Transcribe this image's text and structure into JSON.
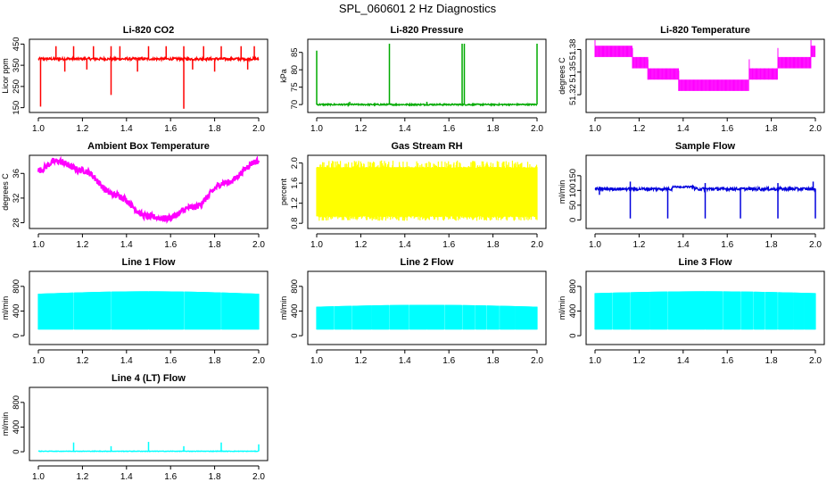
{
  "page": {
    "title": "SPL_060601  2 Hz Diagnostics"
  },
  "chart_data": [
    {
      "type": "line",
      "title": "Li-820 CO2",
      "ylabel": "Licor ppm",
      "color": "#ff0000",
      "xlim": [
        1.0,
        2.0
      ],
      "ylim": [
        140,
        460
      ],
      "xticks": [
        1.0,
        1.2,
        1.4,
        1.6,
        1.8,
        2.0
      ],
      "xtick_labels": [
        "1.0",
        "1.2",
        "1.4",
        "1.6",
        "1.8",
        "2.0"
      ],
      "yticks": [
        150,
        250,
        350,
        450
      ],
      "ytick_labels": [
        "150",
        "250",
        "350",
        "450"
      ],
      "pattern": "spiky",
      "base": 380,
      "noise": 6,
      "spikes": [
        [
          1.08,
          440
        ],
        [
          1.16,
          440
        ],
        [
          1.25,
          440
        ],
        [
          1.33,
          440
        ],
        [
          1.37,
          440
        ],
        [
          1.5,
          440
        ],
        [
          1.58,
          440
        ],
        [
          1.66,
          440
        ],
        [
          1.75,
          440
        ],
        [
          1.83,
          440
        ],
        [
          1.92,
          440
        ],
        [
          1.98,
          440
        ],
        [
          1.01,
          155
        ],
        [
          1.33,
          210
        ],
        [
          1.66,
          145
        ],
        [
          1.12,
          320
        ],
        [
          1.22,
          330
        ],
        [
          1.45,
          320
        ],
        [
          1.7,
          330
        ],
        [
          1.8,
          320
        ],
        [
          1.95,
          330
        ]
      ]
    },
    {
      "type": "line",
      "title": "Li-820 Pressure",
      "ylabel": "kPa",
      "color": "#00aa00",
      "xlim": [
        1.0,
        2.0
      ],
      "ylim": [
        68.5,
        88
      ],
      "xticks": [
        1.0,
        1.2,
        1.4,
        1.6,
        1.8,
        2.0
      ],
      "xtick_labels": [
        "1.0",
        "1.2",
        "1.4",
        "1.6",
        "1.8",
        "2.0"
      ],
      "yticks": [
        70,
        75,
        80,
        85
      ],
      "ytick_labels": [
        "70",
        "75",
        "80",
        "85"
      ],
      "pattern": "spiky",
      "base": 70.0,
      "noise": 0.2,
      "spikes": [
        [
          1.0,
          85.5
        ],
        [
          1.33,
          87.5
        ],
        [
          1.66,
          87.5
        ],
        [
          1.67,
          87.5
        ],
        [
          2.0,
          87.5
        ],
        [
          1.5,
          70.8
        ],
        [
          1.15,
          70.8
        ]
      ]
    },
    {
      "type": "line",
      "title": "Li-820 Temperature",
      "ylabel": "degrees C",
      "color": "#ff00ff",
      "xlim": [
        1.0,
        2.0
      ],
      "ylim": [
        51.3,
        51.39
      ],
      "xticks": [
        1.0,
        1.2,
        1.4,
        1.6,
        1.8,
        2.0
      ],
      "xtick_labels": [
        "1.0",
        "1.2",
        "1.4",
        "1.6",
        "1.8",
        "2.0"
      ],
      "yticks": [
        51.32,
        51.35,
        51.38
      ],
      "ytick_labels": [
        "51.32",
        "51.35",
        "51.38"
      ],
      "pattern": "steps",
      "steps": [
        [
          1.0,
          1.17,
          51.37,
          51.385
        ],
        [
          1.17,
          1.24,
          51.355,
          51.37
        ],
        [
          1.24,
          1.38,
          51.34,
          51.355
        ],
        [
          1.38,
          1.7,
          51.325,
          51.34
        ],
        [
          1.7,
          1.83,
          51.34,
          51.355
        ],
        [
          1.83,
          1.98,
          51.355,
          51.37
        ],
        [
          1.98,
          2.0,
          51.37,
          51.385
        ]
      ]
    },
    {
      "type": "line",
      "title": "Ambient Box Temperature",
      "ylabel": "degrees C",
      "color": "#ff00ff",
      "xlim": [
        1.0,
        2.0
      ],
      "ylim": [
        27.5,
        38.5
      ],
      "xticks": [
        1.0,
        1.2,
        1.4,
        1.6,
        1.8,
        2.0
      ],
      "xtick_labels": [
        "1.0",
        "1.2",
        "1.4",
        "1.6",
        "1.8",
        "2.0"
      ],
      "yticks": [
        28,
        32,
        36
      ],
      "ytick_labels": [
        "28",
        "32",
        "36"
      ],
      "pattern": "curve",
      "noise": 0.5,
      "curve": [
        [
          1.0,
          36.5
        ],
        [
          1.08,
          38.0
        ],
        [
          1.2,
          36.5
        ],
        [
          1.35,
          32.5
        ],
        [
          1.5,
          29.0
        ],
        [
          1.58,
          28.7
        ],
        [
          1.7,
          30.5
        ],
        [
          1.85,
          34.5
        ],
        [
          2.0,
          38.0
        ]
      ]
    },
    {
      "type": "line",
      "title": "Gas Stream RH",
      "ylabel": "percent",
      "color": "#ffff00",
      "xlim": [
        1.0,
        2.0
      ],
      "ylim": [
        0.75,
        2.1
      ],
      "xticks": [
        1.0,
        1.2,
        1.4,
        1.6,
        1.8,
        2.0
      ],
      "xtick_labels": [
        "1.0",
        "1.2",
        "1.4",
        "1.6",
        "1.8",
        "2.0"
      ],
      "yticks": [
        0.8,
        1.2,
        1.6,
        2.0
      ],
      "ytick_labels": [
        "0.8",
        "1.2",
        "1.6",
        "2.0"
      ],
      "pattern": "band",
      "low": 0.95,
      "high": 1.9,
      "ext_low": 0.85,
      "ext_high": 2.05
    },
    {
      "type": "line",
      "title": "Sample Flow",
      "ylabel": "ml/min",
      "color": "#0000dd",
      "xlim": [
        1.0,
        2.0
      ],
      "ylim": [
        -20,
        210
      ],
      "xticks": [
        1.0,
        1.2,
        1.4,
        1.6,
        1.8,
        2.0
      ],
      "xtick_labels": [
        "1.0",
        "1.2",
        "1.4",
        "1.6",
        "1.8",
        "2.0"
      ],
      "yticks": [
        0,
        50,
        100,
        150
      ],
      "ytick_labels": [
        "0",
        "50",
        "100",
        "150"
      ],
      "pattern": "spiky",
      "base": 105,
      "noise": 5,
      "bump": [
        1.35,
        1.45,
        112
      ],
      "spikes": [
        [
          1.16,
          5
        ],
        [
          1.33,
          5
        ],
        [
          1.5,
          5
        ],
        [
          1.66,
          5
        ],
        [
          1.83,
          5
        ],
        [
          2.0,
          5
        ],
        [
          1.16,
          130
        ],
        [
          1.5,
          125
        ],
        [
          1.83,
          125
        ],
        [
          1.99,
          130
        ],
        [
          1.02,
          85
        ]
      ]
    },
    {
      "type": "line",
      "title": "Line 1 Flow",
      "ylabel": "ml/min",
      "color": "#00ffff",
      "xlim": [
        1.0,
        2.0
      ],
      "ylim": [
        -100,
        1000
      ],
      "xticks": [
        1.0,
        1.2,
        1.4,
        1.6,
        1.8,
        2.0
      ],
      "xtick_labels": [
        "1.0",
        "1.2",
        "1.4",
        "1.6",
        "1.8",
        "2.0"
      ],
      "yticks": [
        0,
        400,
        800
      ],
      "ytick_labels": [
        "0",
        "400",
        "800"
      ],
      "pattern": "band",
      "low": 100,
      "high": 680,
      "hump": 40,
      "gaps": [
        1.16,
        1.33,
        1.5,
        1.66,
        1.83
      ]
    },
    {
      "type": "line",
      "title": "Line 2 Flow",
      "ylabel": "ml/min",
      "color": "#00ffff",
      "xlim": [
        1.0,
        2.0
      ],
      "ylim": [
        -100,
        1000
      ],
      "xticks": [
        1.0,
        1.2,
        1.4,
        1.6,
        1.8,
        2.0
      ],
      "xtick_labels": [
        "1.0",
        "1.2",
        "1.4",
        "1.6",
        "1.8",
        "2.0"
      ],
      "yticks": [
        0,
        400,
        800
      ],
      "ytick_labels": [
        "0",
        "400",
        "800"
      ],
      "pattern": "band",
      "low": 100,
      "high": 470,
      "hump": 30,
      "gaps": [
        1.08,
        1.16,
        1.25,
        1.33,
        1.42,
        1.5,
        1.58,
        1.66,
        1.72,
        1.77,
        1.83,
        1.9
      ]
    },
    {
      "type": "line",
      "title": "Line 3 Flow",
      "ylabel": "ml/min",
      "color": "#00ffff",
      "xlim": [
        1.0,
        2.0
      ],
      "ylim": [
        -100,
        1000
      ],
      "xticks": [
        1.0,
        1.2,
        1.4,
        1.6,
        1.8,
        2.0
      ],
      "xtick_labels": [
        "1.0",
        "1.2",
        "1.4",
        "1.6",
        "1.8",
        "2.0"
      ],
      "yticks": [
        0,
        400,
        800
      ],
      "ytick_labels": [
        "0",
        "400",
        "800"
      ],
      "pattern": "band",
      "low": 100,
      "high": 690,
      "hump": 30,
      "gaps": [
        1.08,
        1.16,
        1.25,
        1.33,
        1.5,
        1.58,
        1.66,
        1.72,
        1.77,
        1.83,
        1.9,
        1.95
      ]
    },
    {
      "type": "line",
      "title": "Line 4 (LT) Flow",
      "ylabel": "ml/min",
      "color": "#00ffff",
      "xlim": [
        1.0,
        2.0
      ],
      "ylim": [
        -100,
        1000
      ],
      "xticks": [
        1.0,
        1.2,
        1.4,
        1.6,
        1.8,
        2.0
      ],
      "xtick_labels": [
        "1.0",
        "1.2",
        "1.4",
        "1.6",
        "1.8",
        "2.0"
      ],
      "yticks": [
        0,
        400,
        800
      ],
      "ytick_labels": [
        "0",
        "400",
        "800"
      ],
      "pattern": "spiky",
      "base": 8,
      "noise": 4,
      "spikes": [
        [
          1.16,
          150
        ],
        [
          1.33,
          90
        ],
        [
          1.5,
          160
        ],
        [
          1.66,
          90
        ],
        [
          1.83,
          150
        ],
        [
          2.0,
          120
        ]
      ]
    }
  ]
}
